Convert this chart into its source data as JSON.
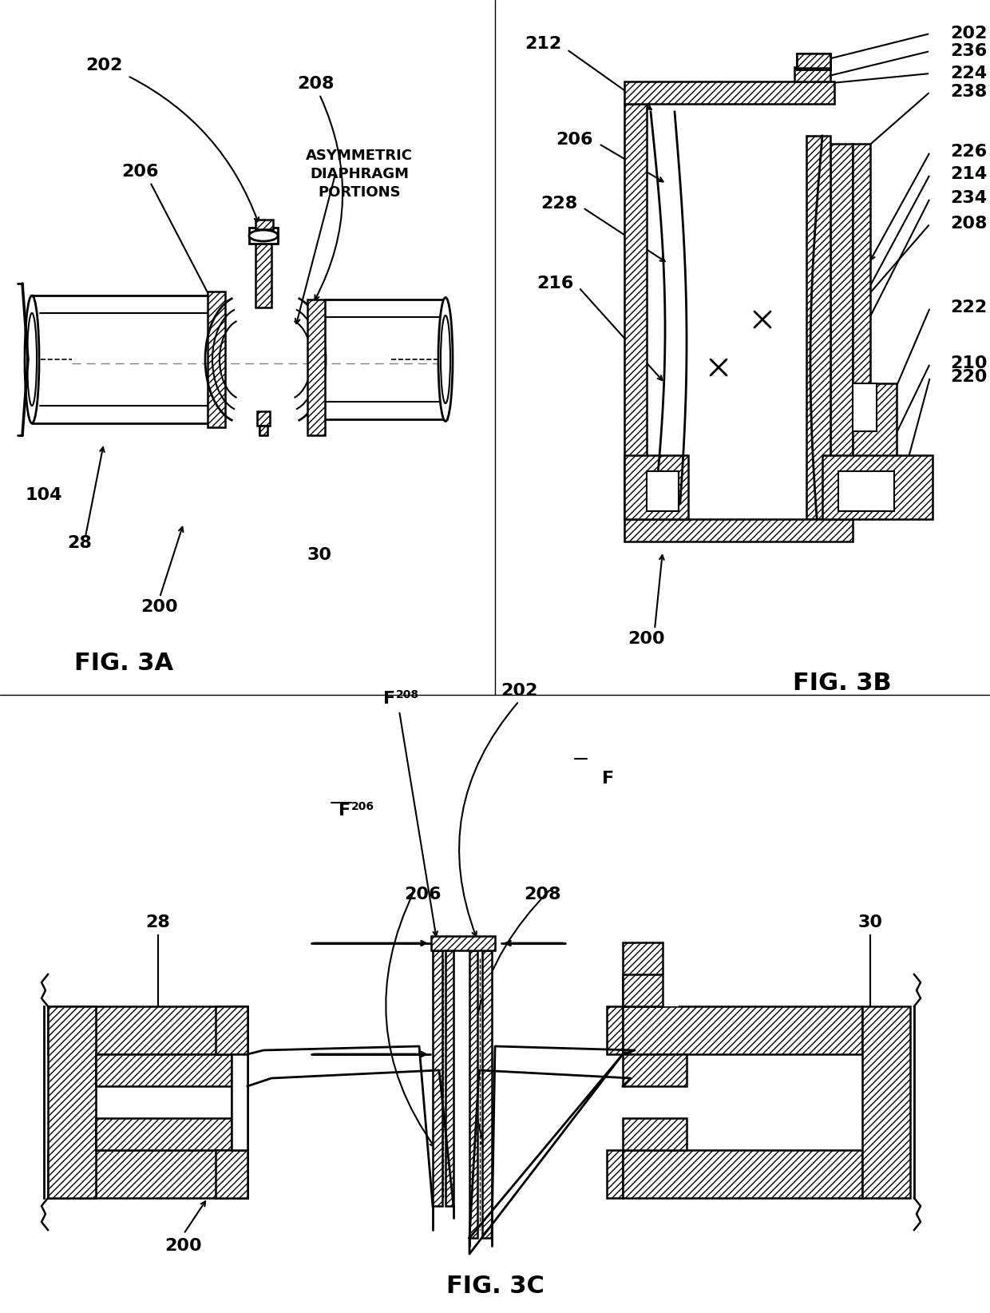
{
  "bg_color": "#ffffff",
  "fig_width": 12.4,
  "fig_height": 16.44,
  "fig3a_label": "FIG. 3A",
  "fig3b_label": "FIG. 3B",
  "fig3c_label": "FIG. 3C",
  "label_fontsize": 22,
  "annot_fontsize": 16,
  "asym_text": [
    "ASYMMETRIC",
    "DIAPHRAGM",
    "PORTIONS"
  ]
}
